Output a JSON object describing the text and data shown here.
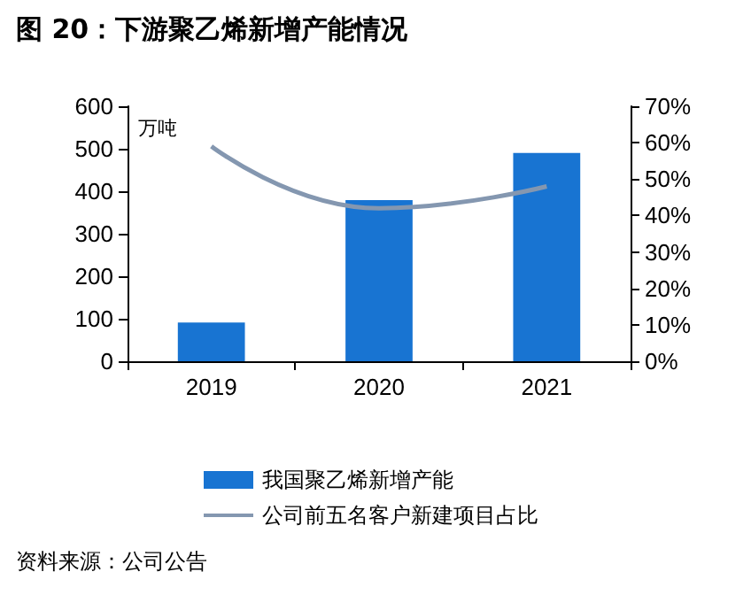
{
  "chart_data": {
    "type": "bar",
    "title": "图 20：下游聚乙烯新增产能情况",
    "ylabel": "万吨",
    "categories": [
      "2019",
      "2020",
      "2021"
    ],
    "series": [
      {
        "name": "我国聚乙烯新增产能",
        "color": "#1874d2",
        "values": [
          91,
          379,
          490
        ]
      },
      {
        "name": "公司前五名客户新建项目占比",
        "type": "line",
        "axis": "y2",
        "color": "#8497b0",
        "values": [
          59,
          42,
          48
        ]
      }
    ],
    "ylim": [
      0,
      600
    ],
    "yticks": [
      0,
      100,
      200,
      300,
      400,
      500,
      600
    ],
    "y2lim": [
      0,
      70
    ],
    "y2ticks": [
      {
        "value": 0,
        "label": "0%"
      },
      {
        "value": 10,
        "label": "10%"
      },
      {
        "value": 20,
        "label": "20%"
      },
      {
        "value": 30,
        "label": "30%"
      },
      {
        "value": 40,
        "label": "40%"
      },
      {
        "value": 50,
        "label": "50%"
      },
      {
        "value": 60,
        "label": "60%"
      },
      {
        "value": 70,
        "label": "70%"
      }
    ],
    "legend": "bottom",
    "grid": false,
    "marker": "none",
    "annotations": [
      "资料来源：公司公告"
    ]
  }
}
